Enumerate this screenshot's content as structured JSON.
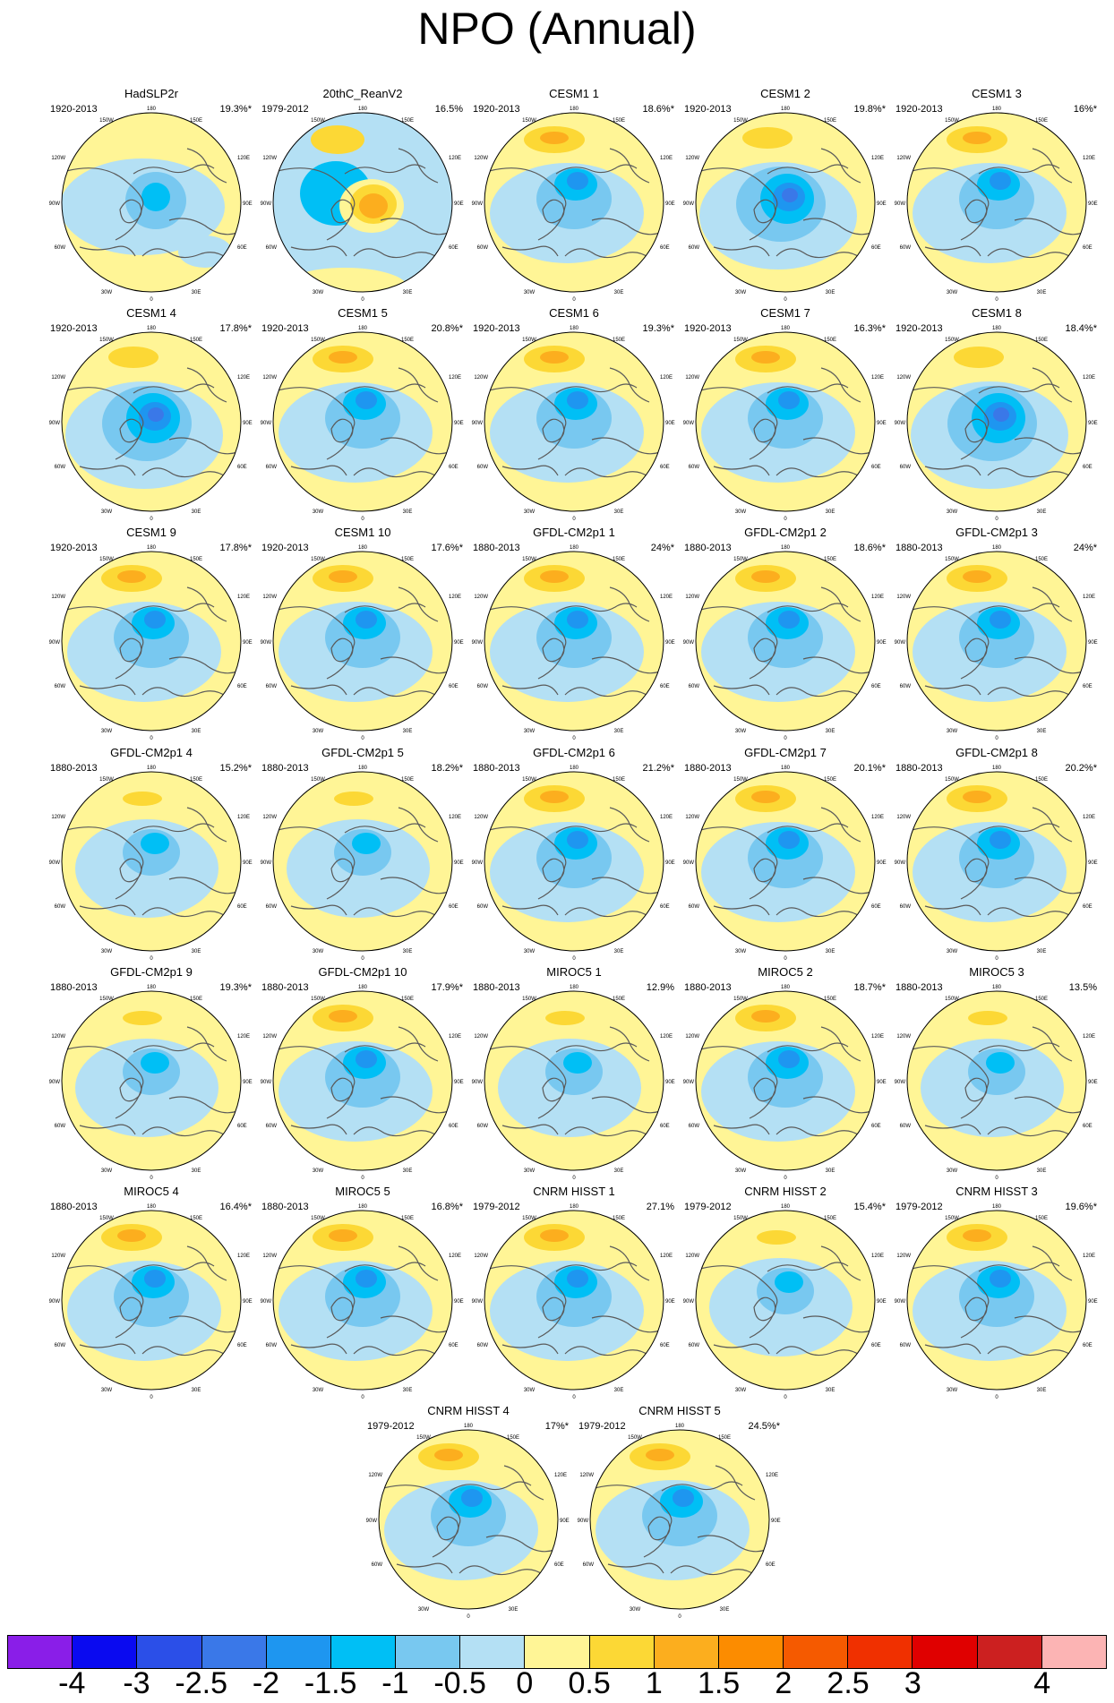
{
  "figure": {
    "title": "NPO (Annual)",
    "map_labels": {
      "lon_top": "180",
      "lon_bottom": "0",
      "w150": "150W",
      "e150": "150E",
      "w120": "120W",
      "e120": "120E",
      "w90": "90W",
      "e90": "90E",
      "w60": "60W",
      "e60": "60E",
      "w30": "30W",
      "e30": "30E"
    }
  },
  "panels": [
    {
      "name": "HadSLP2r",
      "period": "1920-2013",
      "variance": "19.3%*",
      "pattern": "had"
    },
    {
      "name": "20thC_ReanV2",
      "period": "1979-2012",
      "variance": "16.5%",
      "pattern": "rean"
    },
    {
      "name": "CESM1 1",
      "period": "1920-2013",
      "variance": "18.6%*",
      "pattern": "std"
    },
    {
      "name": "CESM1 2",
      "period": "1920-2013",
      "variance": "19.8%*",
      "pattern": "strongneg"
    },
    {
      "name": "CESM1 3",
      "period": "1920-2013",
      "variance": "16%*",
      "pattern": "std"
    },
    {
      "name": "CESM1 4",
      "period": "1920-2013",
      "variance": "17.8%*",
      "pattern": "strongneg"
    },
    {
      "name": "CESM1 5",
      "period": "1920-2013",
      "variance": "20.8%*",
      "pattern": "std"
    },
    {
      "name": "CESM1 6",
      "period": "1920-2013",
      "variance": "19.3%*",
      "pattern": "std"
    },
    {
      "name": "CESM1 7",
      "period": "1920-2013",
      "variance": "16.3%*",
      "pattern": "std"
    },
    {
      "name": "CESM1 8",
      "period": "1920-2013",
      "variance": "18.4%*",
      "pattern": "strongneg"
    },
    {
      "name": "CESM1 9",
      "period": "1920-2013",
      "variance": "17.8%*",
      "pattern": "std"
    },
    {
      "name": "CESM1 10",
      "period": "1920-2013",
      "variance": "17.6%*",
      "pattern": "std"
    },
    {
      "name": "GFDL-CM2p1 1",
      "period": "1880-2013",
      "variance": "24%*",
      "pattern": "std"
    },
    {
      "name": "GFDL-CM2p1 2",
      "period": "1880-2013",
      "variance": "18.6%*",
      "pattern": "std"
    },
    {
      "name": "GFDL-CM2p1 3",
      "period": "1880-2013",
      "variance": "24%*",
      "pattern": "std"
    },
    {
      "name": "GFDL-CM2p1 4",
      "period": "1880-2013",
      "variance": "15.2%*",
      "pattern": "weak"
    },
    {
      "name": "GFDL-CM2p1 5",
      "period": "1880-2013",
      "variance": "18.2%*",
      "pattern": "weak"
    },
    {
      "name": "GFDL-CM2p1 6",
      "period": "1880-2013",
      "variance": "21.2%*",
      "pattern": "std"
    },
    {
      "name": "GFDL-CM2p1 7",
      "period": "1880-2013",
      "variance": "20.1%*",
      "pattern": "std"
    },
    {
      "name": "GFDL-CM2p1 8",
      "period": "1880-2013",
      "variance": "20.2%*",
      "pattern": "std"
    },
    {
      "name": "GFDL-CM2p1 9",
      "period": "1880-2013",
      "variance": "19.3%*",
      "pattern": "weak"
    },
    {
      "name": "GFDL-CM2p1 10",
      "period": "1880-2013",
      "variance": "17.9%*",
      "pattern": "std"
    },
    {
      "name": "MIROC5 1",
      "period": "1880-2013",
      "variance": "12.9%",
      "pattern": "weak"
    },
    {
      "name": "MIROC5 2",
      "period": "1880-2013",
      "variance": "18.7%*",
      "pattern": "std"
    },
    {
      "name": "MIROC5 3",
      "period": "1880-2013",
      "variance": "13.5%",
      "pattern": "weak"
    },
    {
      "name": "MIROC5 4",
      "period": "1880-2013",
      "variance": "16.4%*",
      "pattern": "std"
    },
    {
      "name": "MIROC5 5",
      "period": "1880-2013",
      "variance": "16.8%*",
      "pattern": "std"
    },
    {
      "name": "CNRM HISST 1",
      "period": "1979-2012",
      "variance": "27.1%",
      "pattern": "std"
    },
    {
      "name": "CNRM HISST 2",
      "period": "1979-2012",
      "variance": "15.4%*",
      "pattern": "weak"
    },
    {
      "name": "CNRM HISST 3",
      "period": "1979-2012",
      "variance": "19.6%*",
      "pattern": "std"
    },
    {
      "name": "CNRM HISST 4",
      "period": "1979-2012",
      "variance": "17%*",
      "pattern": "std"
    },
    {
      "name": "CNRM HISST 5",
      "period": "1979-2012",
      "variance": "24.5%*",
      "pattern": "std"
    }
  ],
  "colorbar": {
    "colors": [
      "#8a1ee8",
      "#0a0af0",
      "#2b4fe8",
      "#3a78e8",
      "#1e96f0",
      "#00bff5",
      "#78c8f0",
      "#b4e0f4",
      "#fff596",
      "#fcd835",
      "#fcae1e",
      "#fc8c00",
      "#f55a00",
      "#f03000",
      "#e00000",
      "#cc2020",
      "#fcb4b4"
    ],
    "tick_labels": [
      "-4",
      "-3",
      "-2.5",
      "-2",
      "-1.5",
      "-1",
      "-0.5",
      "0",
      "0.5",
      "1",
      "1.5",
      "2",
      "2.5",
      "3",
      "4"
    ]
  }
}
